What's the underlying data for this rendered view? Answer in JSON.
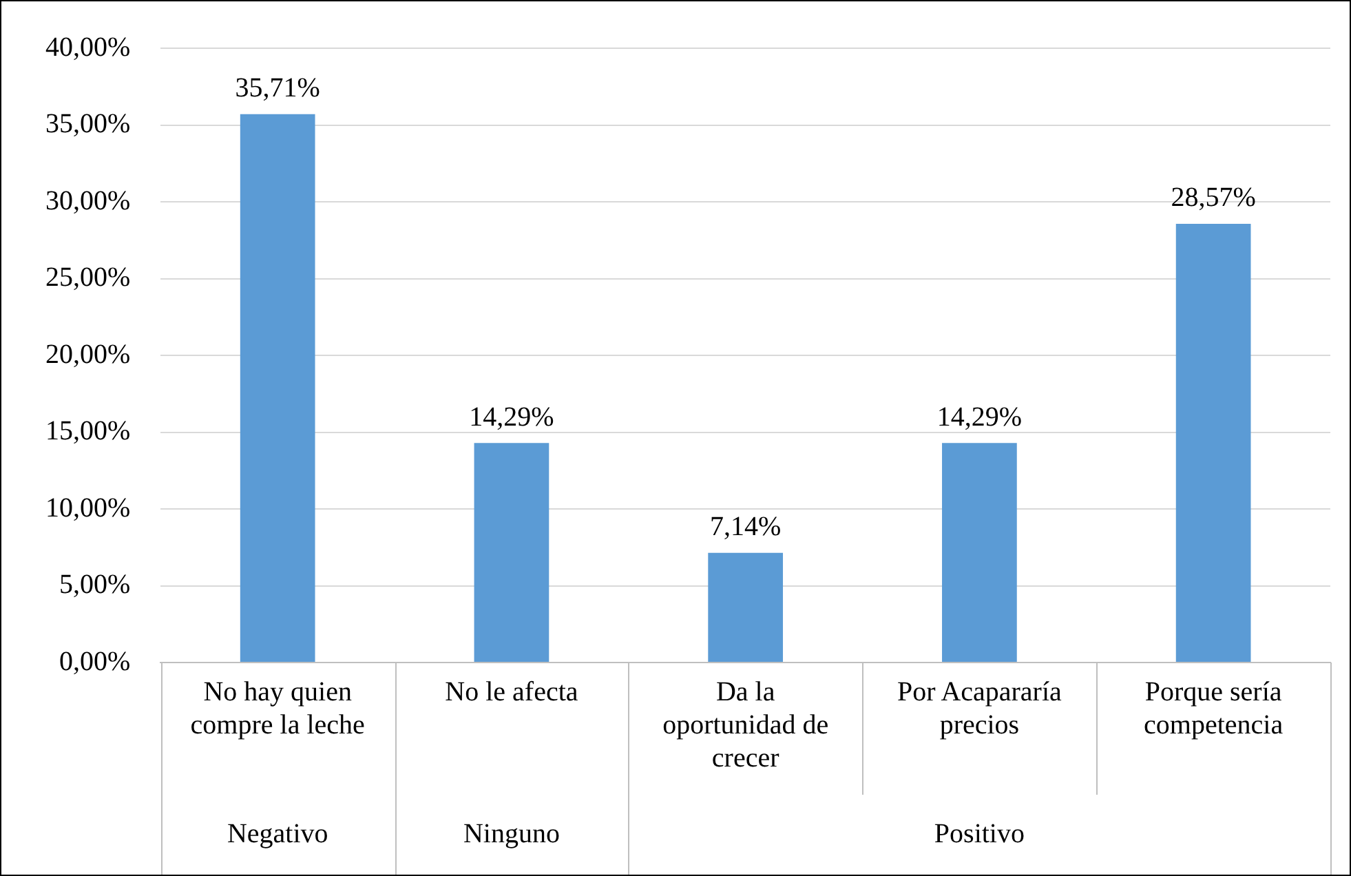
{
  "chart_data": {
    "type": "bar",
    "categories": [
      "No hay quien compre la leche",
      "No le afecta",
      "Da la oportunidad de crecer",
      "Por Acapararía precios",
      "Porque sería competencia"
    ],
    "values": [
      35.71,
      14.29,
      7.14,
      14.29,
      28.57
    ],
    "value_labels": [
      "35,71%",
      "14,29%",
      "7,14%",
      "14,29%",
      "28,57%"
    ],
    "color": "#5b9bd5",
    "ylim": [
      0,
      40
    ],
    "yticks": [
      {
        "value": 0,
        "label": "0,00%"
      },
      {
        "value": 5,
        "label": "5,00%"
      },
      {
        "value": 10,
        "label": "10,00%"
      },
      {
        "value": 15,
        "label": "15,00%"
      },
      {
        "value": 20,
        "label": "20,00%"
      },
      {
        "value": 25,
        "label": "25,00%"
      },
      {
        "value": 30,
        "label": "30,00%"
      },
      {
        "value": 35,
        "label": "35,00%"
      },
      {
        "value": 40,
        "label": "40,00%"
      }
    ],
    "annotations": [
      "Negativo",
      "Ninguno",
      "Positivo"
    ],
    "grid": "y",
    "legend": false
  }
}
